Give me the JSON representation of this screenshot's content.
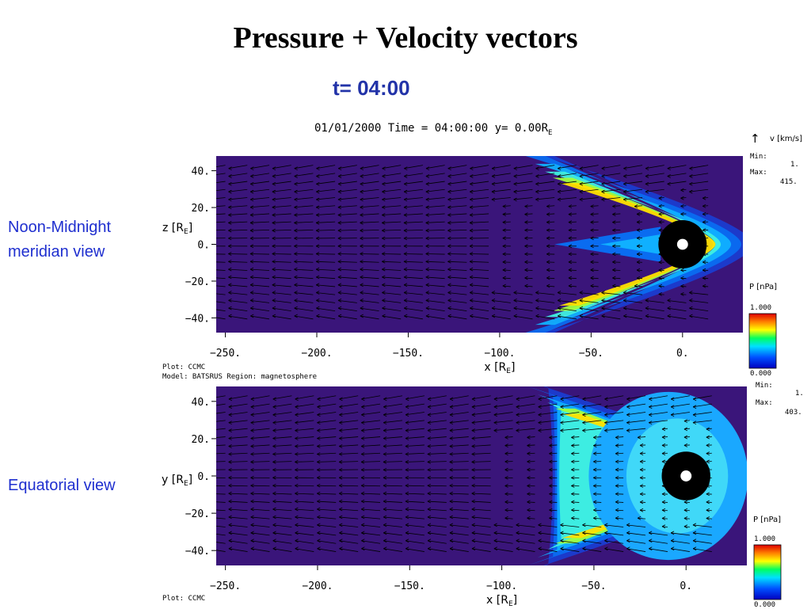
{
  "slide": {
    "title": "Pressure + Velocity vectors",
    "time_label": "t= 04:00",
    "noon_label_line1": "Noon-Midnight",
    "noon_label_line2": "meridian view",
    "equatorial_label": "Equatorial view",
    "plot_header": "01/01/2000 Time = 04:00:00 y= 0.00R",
    "plot_header_sub": "E"
  },
  "colors": {
    "background_field": "#3a157a",
    "accent_text": "#1f2fcf",
    "title_blue": "#2233a8"
  },
  "chart_data": [
    {
      "type": "heatmap",
      "name": "noon-midnight",
      "xlabel": "x [R",
      "xlabel_sub": "E",
      "ylabel": "z [R",
      "ylabel_sub": "E",
      "xticks": [
        "−250.",
        "−200.",
        "−150.",
        "−100.",
        "−50.",
        "0."
      ],
      "xtick_values": [
        -250,
        -200,
        -150,
        -100,
        -50,
        0
      ],
      "yticks": [
        "40.",
        "20.",
        "0.",
        "−20.",
        "−40."
      ],
      "ytick_values": [
        40,
        20,
        0,
        -20,
        -40
      ],
      "xlim": [
        -255,
        33
      ],
      "ylim": [
        -48,
        48
      ],
      "pressure_unit": "P [nPa]",
      "pressure_max": "1.000",
      "pressure_min": "0.000",
      "velocity_unit": "v [km/s]",
      "velocity_min_label": "Min:",
      "velocity_min": "1.",
      "velocity_max_label": "Max:",
      "velocity_max": "415.",
      "plot_footer_line1": "Plot: CCMC",
      "plot_footer_line2": "Model: BATSRUS   Region: magnetosphere",
      "vector_icon": "up-arrow-icon"
    },
    {
      "type": "heatmap",
      "name": "equatorial",
      "xlabel": "x [R",
      "xlabel_sub": "E",
      "ylabel": "y [R",
      "ylabel_sub": "E",
      "xticks": [
        "−250.",
        "−200.",
        "−150.",
        "−100.",
        "−50.",
        "0."
      ],
      "xtick_values": [
        -250,
        -200,
        -150,
        -100,
        -50,
        0
      ],
      "yticks": [
        "40.",
        "20.",
        "0.",
        "−20.",
        "−40."
      ],
      "ytick_values": [
        40,
        20,
        0,
        -20,
        -40
      ],
      "xlim": [
        -255,
        33
      ],
      "ylim": [
        -48,
        48
      ],
      "pressure_unit": "P [nPa]",
      "pressure_max": "1.000",
      "pressure_min": "0.000",
      "velocity_min_label": "Min:",
      "velocity_min": "1.",
      "velocity_max_label": "Max:",
      "velocity_max": "403.",
      "plot_footer_line1": "Plot: CCMC"
    }
  ]
}
